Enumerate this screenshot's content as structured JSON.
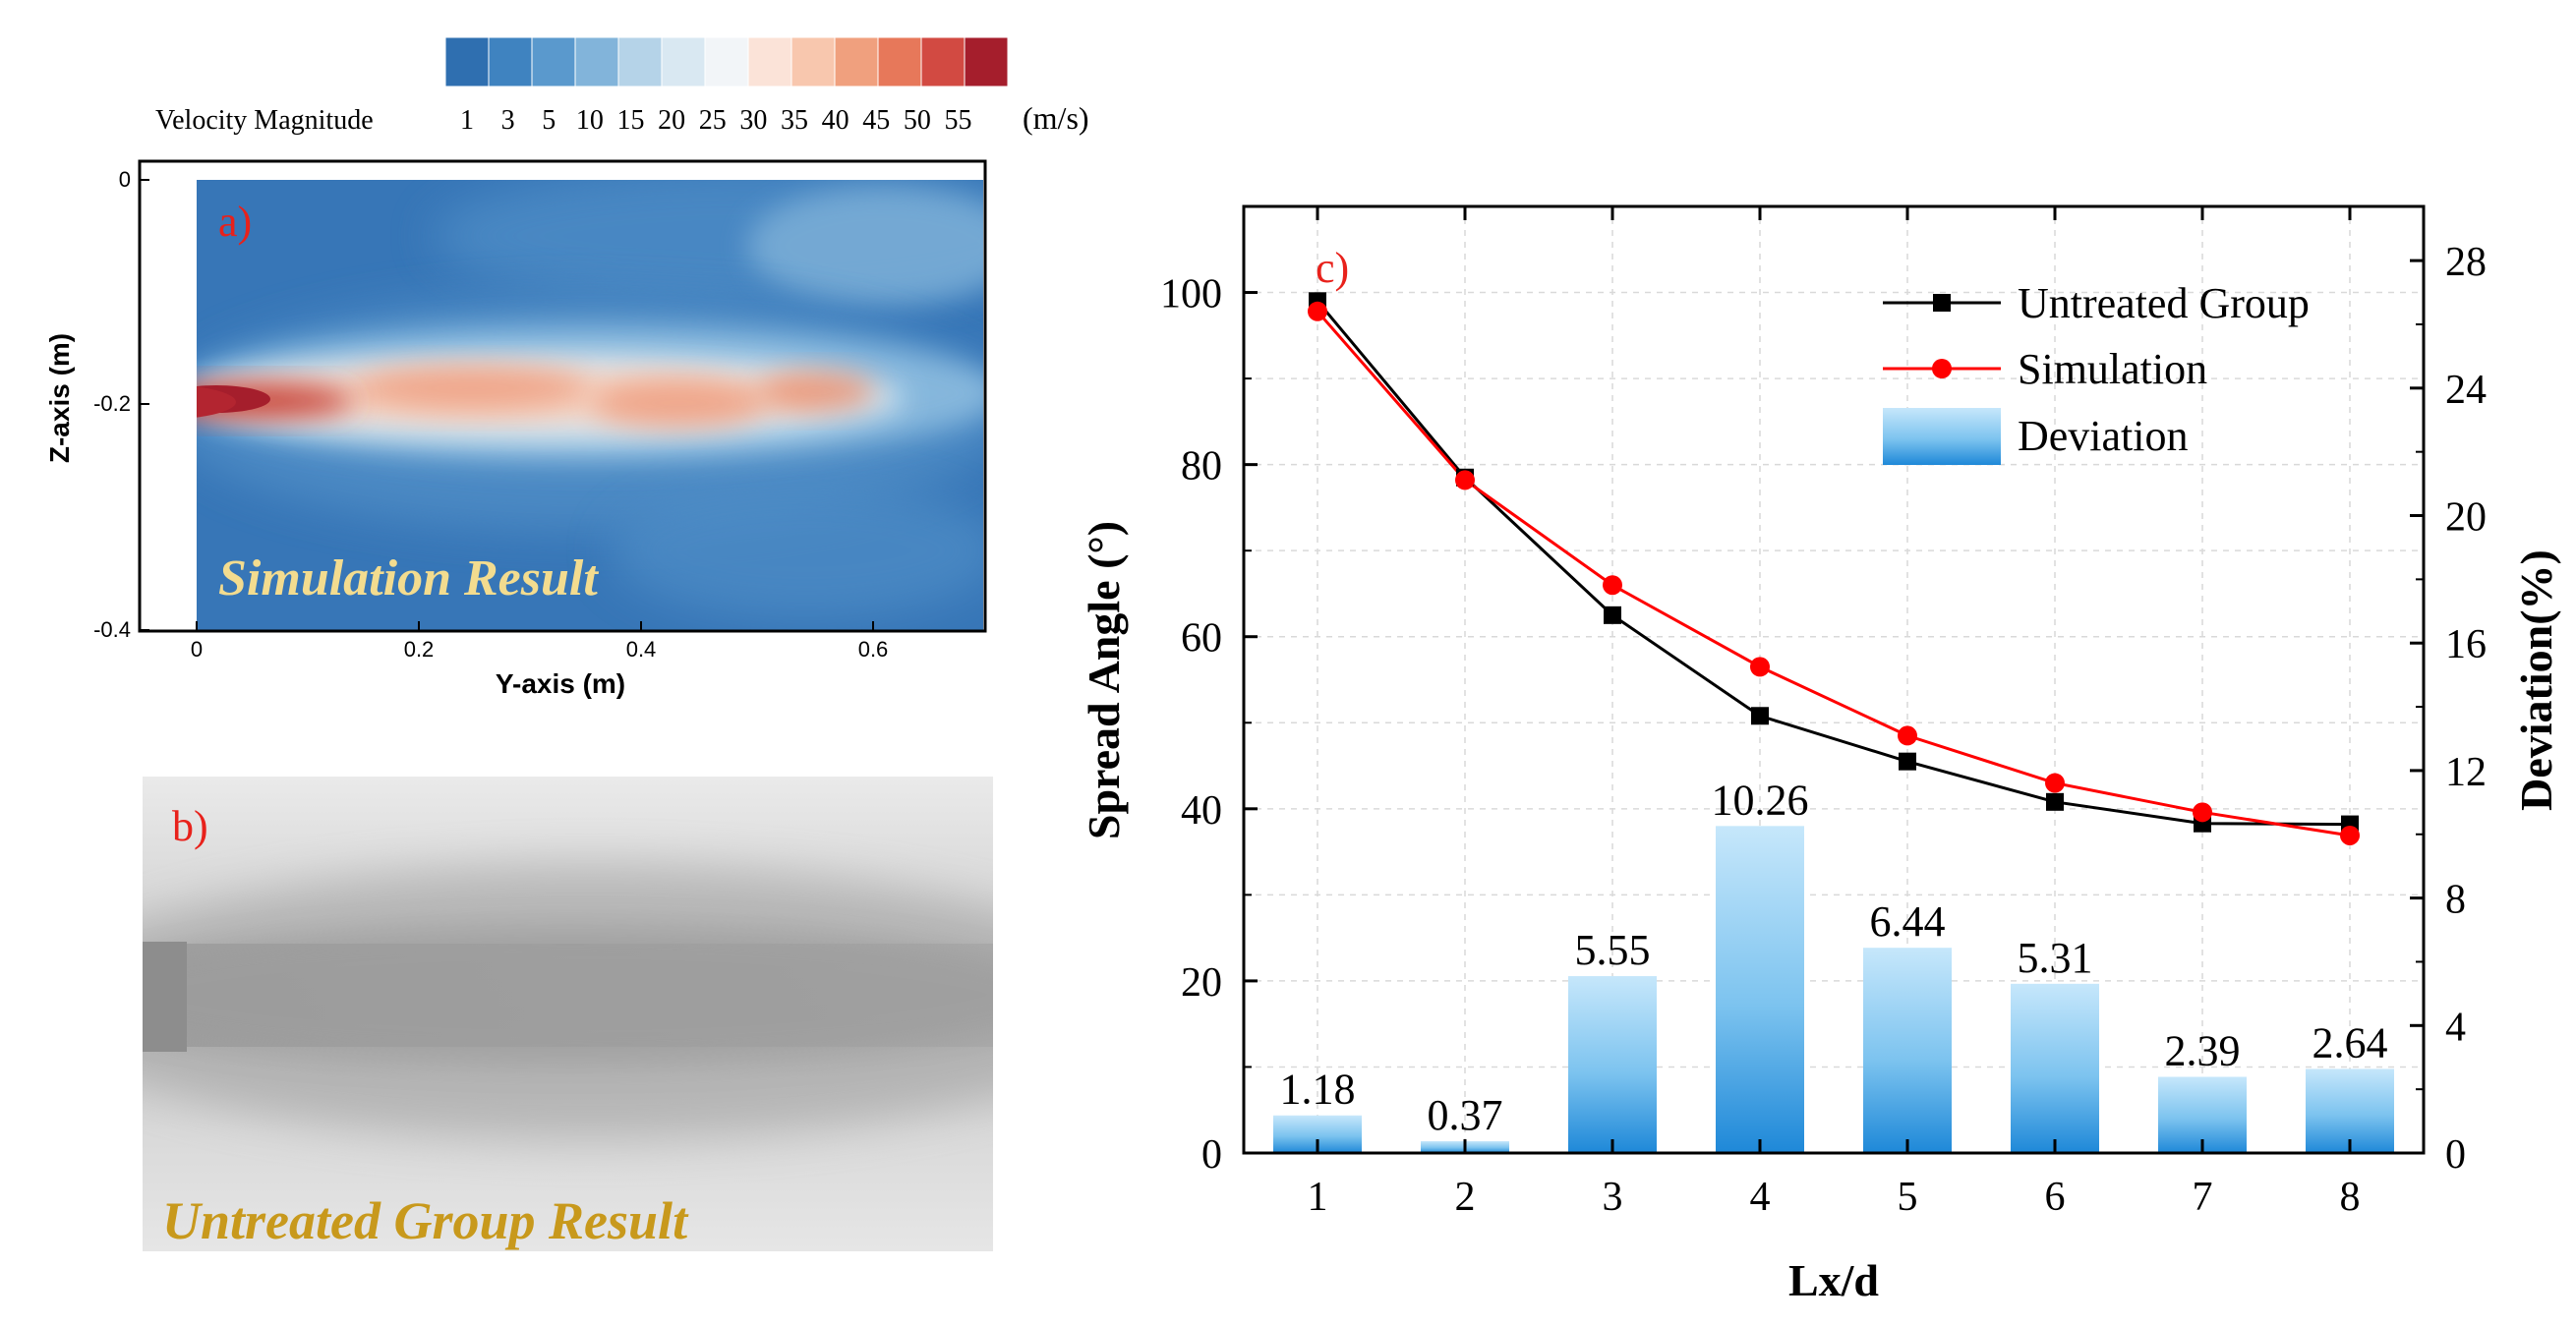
{
  "colorbar": {
    "label": "Velocity Magnitude",
    "unit": "(m/s)",
    "ticks": [
      "1",
      "3",
      "5",
      "10",
      "15",
      "20",
      "25",
      "30",
      "35",
      "40",
      "45",
      "50",
      "55"
    ],
    "colors": [
      "#2f6fb0",
      "#3f83c0",
      "#5a99cd",
      "#82b4da",
      "#b5d3e8",
      "#d9e8f2",
      "#f2f5f8",
      "#fbe3d8",
      "#f8c7ae",
      "#f0a07e",
      "#e7785a",
      "#d24a42",
      "#a51e2c"
    ]
  },
  "panel_a": {
    "tag": "a)",
    "overlay_text": "Simulation Result",
    "xlabel": "Y-axis (m)",
    "ylabel": "Z-axis (m)",
    "x_ticks": [
      "0",
      "0.2",
      "0.4",
      "0.6"
    ],
    "y_ticks": [
      "0",
      "-0.2",
      "-0.4"
    ]
  },
  "panel_b": {
    "tag": "b)",
    "overlay_text": "Untreated Group Result"
  },
  "chart_data": [
    {
      "type": "line",
      "tag": "c)",
      "xlabel": "Lx/d",
      "ylabel": "Spread Angle (°)",
      "y2label": "Deviation(%)",
      "x": [
        1,
        2,
        3,
        4,
        5,
        6,
        7,
        8
      ],
      "xlim": [
        0.5,
        8.5
      ],
      "ylim": [
        0,
        110
      ],
      "y2lim": [
        0,
        29.7
      ],
      "y_ticks": [
        0,
        20,
        40,
        60,
        80,
        100
      ],
      "y2_ticks": [
        0,
        4,
        8,
        12,
        16,
        20,
        24,
        28
      ],
      "legend_position": "top-right",
      "grid": true,
      "series": [
        {
          "name": "Untreated Group",
          "type": "line",
          "axis": "left",
          "color": "#000000",
          "marker": "square",
          "values": [
            99.0,
            78.5,
            62.5,
            50.8,
            45.5,
            40.8,
            38.3,
            38.2
          ]
        },
        {
          "name": "Simulation",
          "type": "line",
          "axis": "left",
          "color": "#ff0000",
          "marker": "circle",
          "values": [
            97.8,
            78.2,
            66.0,
            56.5,
            48.5,
            43.0,
            39.6,
            36.9
          ]
        },
        {
          "name": "Deviation",
          "type": "bar",
          "axis": "right",
          "color": "#3aa2e0",
          "values": [
            1.18,
            0.37,
            5.55,
            10.26,
            6.44,
            5.31,
            2.39,
            2.64
          ],
          "labels": [
            "1.18",
            "0.37",
            "5.55",
            "10.26",
            "6.44",
            "5.31",
            "2.39",
            "2.64"
          ]
        }
      ]
    }
  ]
}
